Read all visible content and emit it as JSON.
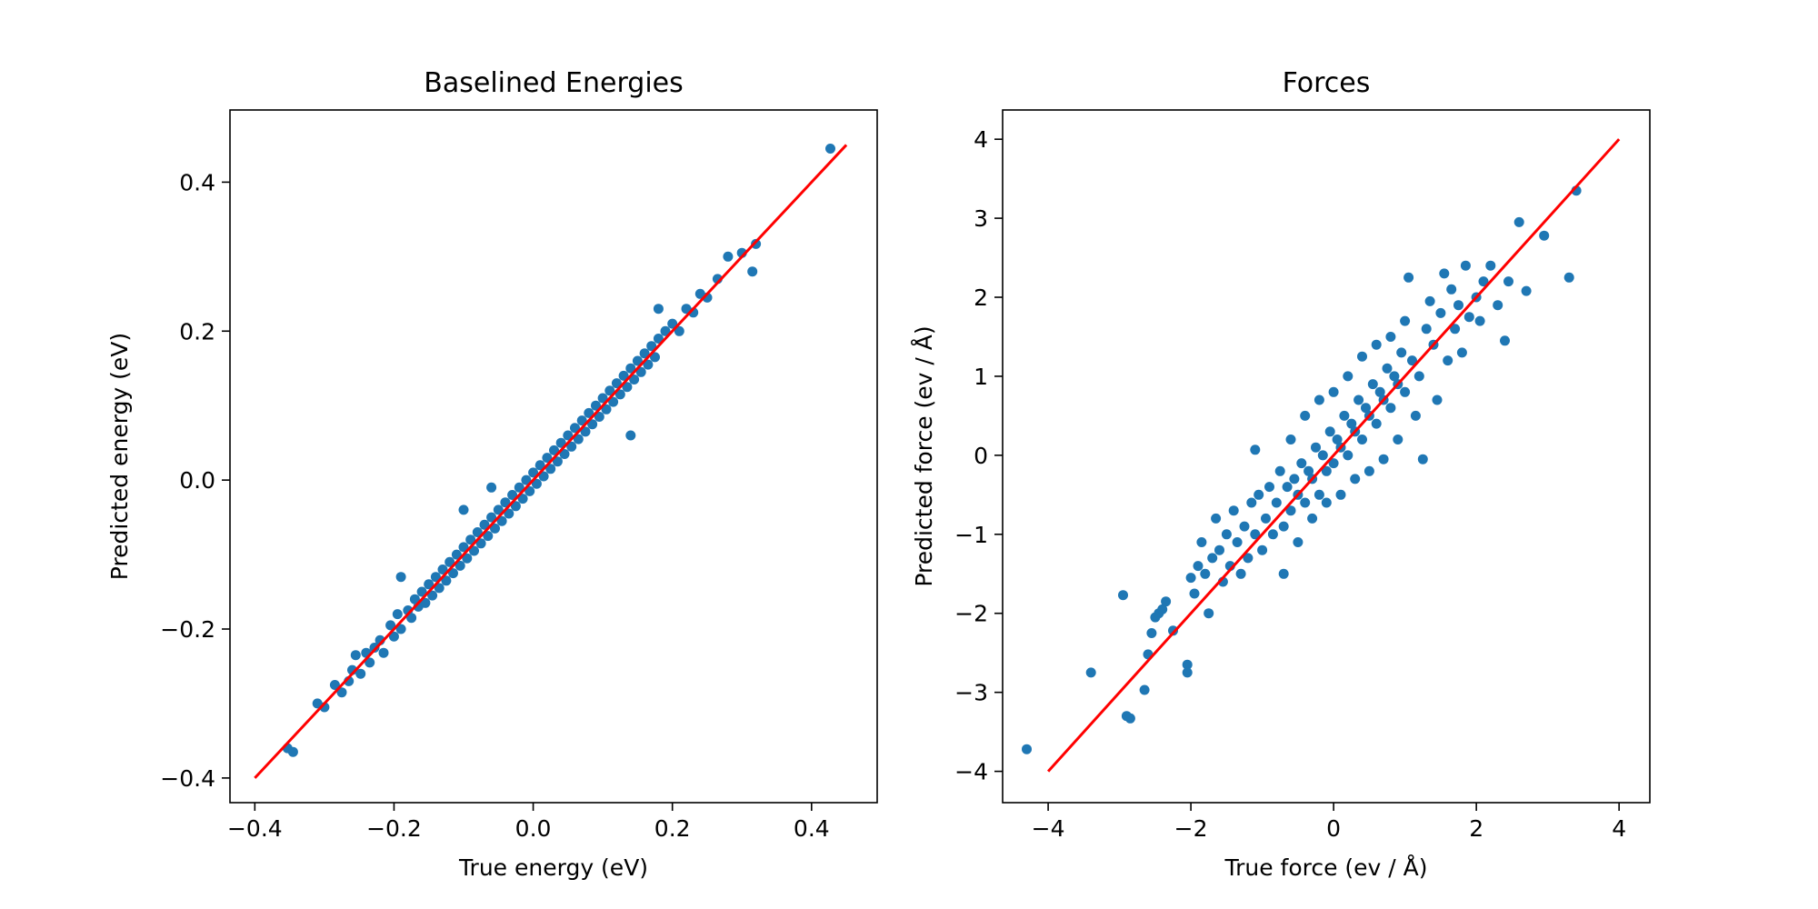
{
  "chart_data": [
    {
      "type": "scatter",
      "title": "Baselined Energies",
      "xlabel": "True energy (eV)",
      "ylabel": "Predicted energy (eV)",
      "xlim": [
        -0.4357,
        0.4943
      ],
      "ylim": [
        -0.4331,
        0.4969
      ],
      "xticks": [
        -0.4,
        -0.2,
        0.0,
        0.2,
        0.4
      ],
      "xtick_labels": [
        "−0.4",
        "−0.2",
        "0.0",
        "0.2",
        "0.4"
      ],
      "yticks": [
        -0.4,
        -0.2,
        0.0,
        0.2,
        0.4
      ],
      "ytick_labels": [
        "−0.4",
        "−0.2",
        "0.0",
        "0.2",
        "0.4"
      ],
      "grid": false,
      "colors": {
        "points": "#1f77b4",
        "reference_line": "#ff0000"
      },
      "reference_line": {
        "x": [
          -0.4,
          0.45
        ],
        "y": [
          -0.4,
          0.45
        ]
      },
      "series": [
        {
          "points": [
            [
              -0.353,
              -0.36
            ],
            [
              -0.345,
              -0.365
            ],
            [
              -0.31,
              -0.3
            ],
            [
              -0.3,
              -0.305
            ],
            [
              -0.285,
              -0.275
            ],
            [
              -0.275,
              -0.285
            ],
            [
              -0.265,
              -0.27
            ],
            [
              -0.26,
              -0.255
            ],
            [
              -0.255,
              -0.235
            ],
            [
              -0.248,
              -0.26
            ],
            [
              -0.24,
              -0.232
            ],
            [
              -0.235,
              -0.245
            ],
            [
              -0.228,
              -0.225
            ],
            [
              -0.22,
              -0.215
            ],
            [
              -0.215,
              -0.232
            ],
            [
              -0.205,
              -0.195
            ],
            [
              -0.2,
              -0.21
            ],
            [
              -0.195,
              -0.18
            ],
            [
              -0.19,
              -0.2
            ],
            [
              -0.19,
              -0.13
            ],
            [
              -0.18,
              -0.175
            ],
            [
              -0.175,
              -0.185
            ],
            [
              -0.17,
              -0.16
            ],
            [
              -0.165,
              -0.17
            ],
            [
              -0.16,
              -0.15
            ],
            [
              -0.155,
              -0.165
            ],
            [
              -0.15,
              -0.14
            ],
            [
              -0.145,
              -0.155
            ],
            [
              -0.14,
              -0.13
            ],
            [
              -0.135,
              -0.145
            ],
            [
              -0.13,
              -0.12
            ],
            [
              -0.125,
              -0.135
            ],
            [
              -0.12,
              -0.11
            ],
            [
              -0.115,
              -0.125
            ],
            [
              -0.11,
              -0.1
            ],
            [
              -0.105,
              -0.115
            ],
            [
              -0.1,
              -0.09
            ],
            [
              -0.1,
              -0.04
            ],
            [
              -0.095,
              -0.105
            ],
            [
              -0.09,
              -0.08
            ],
            [
              -0.085,
              -0.095
            ],
            [
              -0.08,
              -0.07
            ],
            [
              -0.075,
              -0.085
            ],
            [
              -0.07,
              -0.06
            ],
            [
              -0.065,
              -0.075
            ],
            [
              -0.06,
              -0.05
            ],
            [
              -0.06,
              -0.01
            ],
            [
              -0.055,
              -0.065
            ],
            [
              -0.05,
              -0.04
            ],
            [
              -0.045,
              -0.055
            ],
            [
              -0.04,
              -0.03
            ],
            [
              -0.035,
              -0.045
            ],
            [
              -0.03,
              -0.02
            ],
            [
              -0.025,
              -0.035
            ],
            [
              -0.02,
              -0.01
            ],
            [
              -0.015,
              -0.025
            ],
            [
              -0.01,
              0.0
            ],
            [
              -0.005,
              -0.015
            ],
            [
              0.0,
              0.01
            ],
            [
              0.005,
              -0.005
            ],
            [
              0.01,
              0.02
            ],
            [
              0.015,
              0.005
            ],
            [
              0.02,
              0.03
            ],
            [
              0.025,
              0.015
            ],
            [
              0.03,
              0.04
            ],
            [
              0.035,
              0.025
            ],
            [
              0.04,
              0.05
            ],
            [
              0.045,
              0.035
            ],
            [
              0.05,
              0.06
            ],
            [
              0.055,
              0.045
            ],
            [
              0.06,
              0.07
            ],
            [
              0.065,
              0.055
            ],
            [
              0.07,
              0.08
            ],
            [
              0.075,
              0.065
            ],
            [
              0.08,
              0.09
            ],
            [
              0.085,
              0.075
            ],
            [
              0.09,
              0.1
            ],
            [
              0.095,
              0.085
            ],
            [
              0.1,
              0.11
            ],
            [
              0.105,
              0.095
            ],
            [
              0.11,
              0.12
            ],
            [
              0.115,
              0.105
            ],
            [
              0.12,
              0.13
            ],
            [
              0.125,
              0.115
            ],
            [
              0.13,
              0.14
            ],
            [
              0.135,
              0.125
            ],
            [
              0.14,
              0.06
            ],
            [
              0.14,
              0.15
            ],
            [
              0.145,
              0.135
            ],
            [
              0.15,
              0.16
            ],
            [
              0.155,
              0.145
            ],
            [
              0.16,
              0.17
            ],
            [
              0.165,
              0.155
            ],
            [
              0.17,
              0.18
            ],
            [
              0.175,
              0.165
            ],
            [
              0.18,
              0.19
            ],
            [
              0.18,
              0.23
            ],
            [
              0.19,
              0.2
            ],
            [
              0.2,
              0.21
            ],
            [
              0.21,
              0.2
            ],
            [
              0.22,
              0.23
            ],
            [
              0.23,
              0.225
            ],
            [
              0.24,
              0.25
            ],
            [
              0.25,
              0.245
            ],
            [
              0.265,
              0.27
            ],
            [
              0.28,
              0.3
            ],
            [
              0.3,
              0.305
            ],
            [
              0.315,
              0.28
            ],
            [
              0.32,
              0.317
            ],
            [
              0.427,
              0.445
            ]
          ]
        }
      ]
    },
    {
      "type": "scatter",
      "title": "Forces",
      "xlabel": "True force (ev / Å)",
      "ylabel": "Predicted force (ev / Å)",
      "xlim": [
        -4.638,
        4.431
      ],
      "ylim": [
        -4.396,
        4.37
      ],
      "xticks": [
        -4,
        -2,
        0,
        2,
        4
      ],
      "xtick_labels": [
        "−4",
        "−2",
        "0",
        "2",
        "4"
      ],
      "yticks": [
        -4,
        -3,
        -2,
        -1,
        0,
        1,
        2,
        3,
        4
      ],
      "ytick_labels": [
        "−4",
        "−3",
        "−2",
        "−1",
        "0",
        "1",
        "2",
        "3",
        "4"
      ],
      "grid": false,
      "colors": {
        "points": "#1f77b4",
        "reference_line": "#ff0000"
      },
      "reference_line": {
        "x": [
          -4,
          4
        ],
        "y": [
          -4,
          4
        ]
      },
      "series": [
        {
          "points": [
            [
              -4.3,
              -3.72
            ],
            [
              -3.4,
              -2.75
            ],
            [
              -2.95,
              -1.77
            ],
            [
              -2.9,
              -3.3
            ],
            [
              -2.85,
              -3.33
            ],
            [
              -2.65,
              -2.97
            ],
            [
              -2.6,
              -2.52
            ],
            [
              -2.55,
              -2.25
            ],
            [
              -2.5,
              -2.05
            ],
            [
              -2.45,
              -2.0
            ],
            [
              -2.4,
              -1.95
            ],
            [
              -2.35,
              -1.85
            ],
            [
              -2.25,
              -2.22
            ],
            [
              -2.05,
              -2.65
            ],
            [
              -2.05,
              -2.75
            ],
            [
              -2.0,
              -1.55
            ],
            [
              -1.95,
              -1.75
            ],
            [
              -1.9,
              -1.4
            ],
            [
              -1.85,
              -1.1
            ],
            [
              -1.8,
              -1.5
            ],
            [
              -1.75,
              -2.0
            ],
            [
              -1.7,
              -1.3
            ],
            [
              -1.65,
              -0.8
            ],
            [
              -1.6,
              -1.2
            ],
            [
              -1.55,
              -1.6
            ],
            [
              -1.5,
              -1.0
            ],
            [
              -1.45,
              -1.4
            ],
            [
              -1.4,
              -0.7
            ],
            [
              -1.35,
              -1.1
            ],
            [
              -1.3,
              -1.5
            ],
            [
              -1.25,
              -0.9
            ],
            [
              -1.2,
              -1.3
            ],
            [
              -1.15,
              -0.6
            ],
            [
              -1.1,
              -1.0
            ],
            [
              -1.1,
              0.07
            ],
            [
              -1.05,
              -0.5
            ],
            [
              -1.0,
              -1.2
            ],
            [
              -0.95,
              -0.8
            ],
            [
              -0.9,
              -0.4
            ],
            [
              -0.85,
              -1.0
            ],
            [
              -0.8,
              -0.6
            ],
            [
              -0.75,
              -0.2
            ],
            [
              -0.7,
              -1.5
            ],
            [
              -0.7,
              -0.9
            ],
            [
              -0.65,
              -0.4
            ],
            [
              -0.6,
              0.2
            ],
            [
              -0.6,
              -0.7
            ],
            [
              -0.55,
              -0.3
            ],
            [
              -0.5,
              -1.1
            ],
            [
              -0.5,
              -0.5
            ],
            [
              -0.45,
              -0.1
            ],
            [
              -0.4,
              0.5
            ],
            [
              -0.4,
              -0.6
            ],
            [
              -0.35,
              -0.2
            ],
            [
              -0.3,
              -0.8
            ],
            [
              -0.3,
              -0.3
            ],
            [
              -0.25,
              0.1
            ],
            [
              -0.2,
              0.7
            ],
            [
              -0.2,
              -0.5
            ],
            [
              -0.15,
              0.0
            ],
            [
              -0.1,
              -0.6
            ],
            [
              -0.1,
              -0.2
            ],
            [
              -0.05,
              0.3
            ],
            [
              0.0,
              0.8
            ],
            [
              0.0,
              -0.1
            ],
            [
              0.05,
              0.2
            ],
            [
              0.1,
              -0.5
            ],
            [
              0.1,
              0.1
            ],
            [
              0.15,
              0.5
            ],
            [
              0.2,
              1.0
            ],
            [
              0.2,
              0.0
            ],
            [
              0.25,
              0.4
            ],
            [
              0.3,
              -0.3
            ],
            [
              0.3,
              0.3
            ],
            [
              0.35,
              0.7
            ],
            [
              0.4,
              1.25
            ],
            [
              0.4,
              0.2
            ],
            [
              0.45,
              0.6
            ],
            [
              0.5,
              -0.2
            ],
            [
              0.5,
              0.5
            ],
            [
              0.55,
              0.9
            ],
            [
              0.6,
              1.4
            ],
            [
              0.6,
              0.4
            ],
            [
              0.65,
              0.8
            ],
            [
              0.7,
              -0.05
            ],
            [
              0.7,
              0.7
            ],
            [
              0.75,
              1.1
            ],
            [
              0.8,
              1.5
            ],
            [
              0.8,
              0.6
            ],
            [
              0.85,
              1.0
            ],
            [
              0.9,
              0.2
            ],
            [
              0.9,
              0.9
            ],
            [
              0.95,
              1.3
            ],
            [
              1.0,
              1.7
            ],
            [
              1.0,
              0.8
            ],
            [
              1.05,
              2.25
            ],
            [
              1.1,
              1.2
            ],
            [
              1.15,
              0.5
            ],
            [
              1.2,
              1.0
            ],
            [
              1.25,
              -0.05
            ],
            [
              1.3,
              1.6
            ],
            [
              1.35,
              1.95
            ],
            [
              1.4,
              1.4
            ],
            [
              1.45,
              0.7
            ],
            [
              1.5,
              1.8
            ],
            [
              1.55,
              2.3
            ],
            [
              1.6,
              1.2
            ],
            [
              1.65,
              2.1
            ],
            [
              1.7,
              1.6
            ],
            [
              1.75,
              1.9
            ],
            [
              1.8,
              1.3
            ],
            [
              1.85,
              2.4
            ],
            [
              1.9,
              1.75
            ],
            [
              2.0,
              2.0
            ],
            [
              2.05,
              1.7
            ],
            [
              2.1,
              2.2
            ],
            [
              2.2,
              2.4
            ],
            [
              2.3,
              1.9
            ],
            [
              2.4,
              1.45
            ],
            [
              2.45,
              2.2
            ],
            [
              2.6,
              2.95
            ],
            [
              2.7,
              2.08
            ],
            [
              2.95,
              2.78
            ],
            [
              3.3,
              2.25
            ],
            [
              3.4,
              3.35
            ]
          ]
        }
      ]
    }
  ]
}
